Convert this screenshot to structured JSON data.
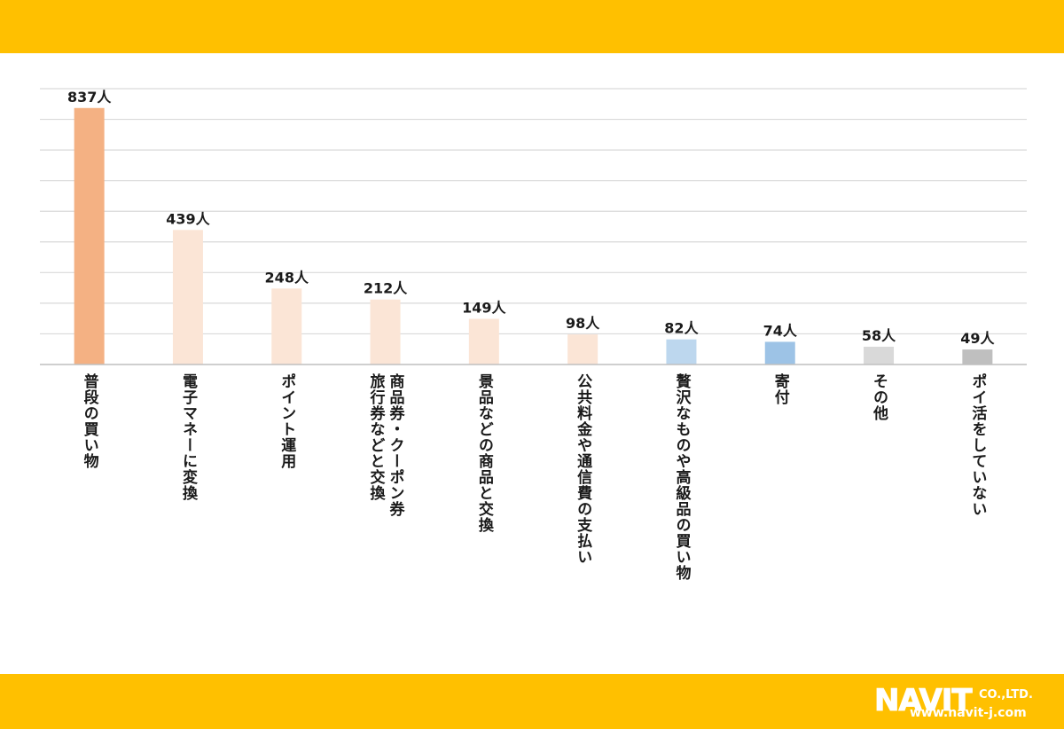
{
  "colors": {
    "band": "#FFC000",
    "grid": "#D9D9D9",
    "axis": "#BFBFBF",
    "text": "#1a1a1a"
  },
  "logo": {
    "main": "NAVIT",
    "suffix": "CO.,LTD.",
    "url": "www.navit-j.com"
  },
  "chart_data": {
    "type": "bar",
    "categories": [
      "普段の買い物",
      "電子マネーに変換",
      "ポイント運用",
      "商品券・クーポン券旅行券などと交換",
      "景品などの商品と交換",
      "公共料金や通信費の支払い",
      "贅沢なものや高級品の買い物",
      "寄付",
      "その他",
      "ポイ活をしていない"
    ],
    "label_lines": [
      [
        "普段の買い物"
      ],
      [
        "電子マネーに変換"
      ],
      [
        "ポイント運用"
      ],
      [
        "商品券・クーポン券",
        "旅行券などと交換"
      ],
      [
        "景品などの商品と交換"
      ],
      [
        "公共料金や通信費の支払い"
      ],
      [
        "贅沢なものや高級品の買い物"
      ],
      [
        "寄付"
      ],
      [
        "その他"
      ],
      [
        "ポイ活をしていない"
      ]
    ],
    "values": [
      837,
      439,
      248,
      212,
      149,
      98,
      82,
      74,
      58,
      49
    ],
    "value_labels": [
      "837人",
      "439人",
      "248人",
      "212人",
      "149人",
      "98人",
      "82人",
      "74人",
      "58人",
      "49人"
    ],
    "bar_colors": [
      "#F4B183",
      "#FBE5D6",
      "#FBE5D6",
      "#FBE5D6",
      "#FBE5D6",
      "#FBE5D6",
      "#BDD7EE",
      "#9DC3E6",
      "#D9D9D9",
      "#BFBFBF"
    ],
    "ylim": [
      0,
      900
    ],
    "gridline_step": 100,
    "grid": true,
    "title": "",
    "xlabel": "",
    "ylabel": ""
  }
}
